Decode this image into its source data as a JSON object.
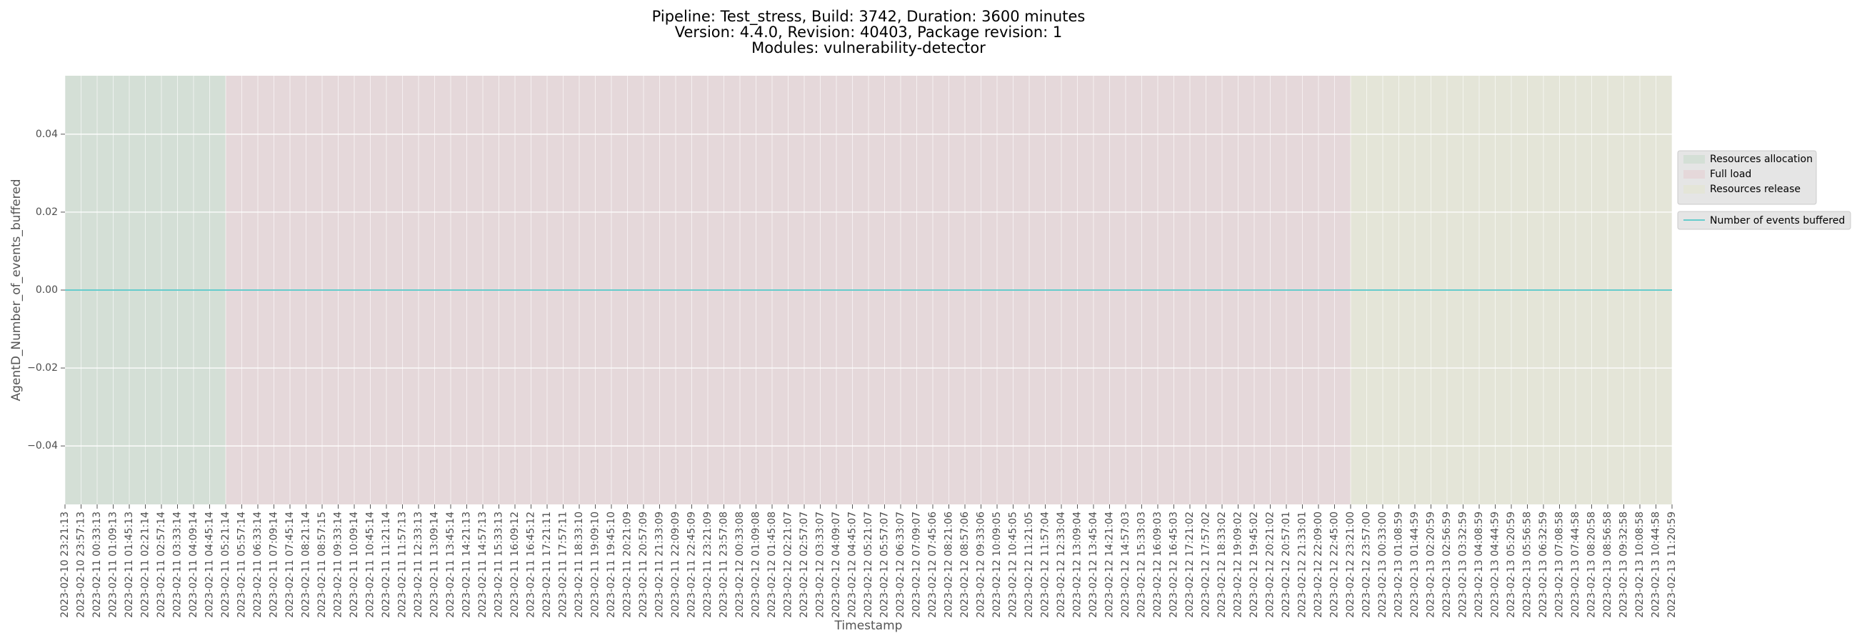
{
  "chart_data": {
    "type": "line",
    "title": [
      "Pipeline: Test_stress, Build: 3742, Duration: 3600 minutes",
      "Version: 4.4.0, Revision: 40403, Package revision: 1",
      "Modules: vulnerability-detector"
    ],
    "x_label": "Timestamp",
    "y_label": "AgentD_Number_of_events_buffered",
    "x": [
      "2023-02-10 23:21:13",
      "2023-02-10 23:57:13",
      "2023-02-11 00:33:13",
      "2023-02-11 01:09:13",
      "2023-02-11 01:45:13",
      "2023-02-11 02:21:14",
      "2023-02-11 02:57:14",
      "2023-02-11 03:33:14",
      "2023-02-11 04:09:14",
      "2023-02-11 04:45:14",
      "2023-02-11 05:21:14",
      "2023-02-11 05:57:14",
      "2023-02-11 06:33:14",
      "2023-02-11 07:09:14",
      "2023-02-11 07:45:14",
      "2023-02-11 08:21:14",
      "2023-02-11 08:57:15",
      "2023-02-11 09:33:14",
      "2023-02-11 10:09:14",
      "2023-02-11 10:45:14",
      "2023-02-11 11:21:14",
      "2023-02-11 11:57:13",
      "2023-02-11 12:33:13",
      "2023-02-11 13:09:14",
      "2023-02-11 13:45:14",
      "2023-02-11 14:21:13",
      "2023-02-11 14:57:13",
      "2023-02-11 15:33:13",
      "2023-02-11 16:09:12",
      "2023-02-11 16:45:12",
      "2023-02-11 17:21:11",
      "2023-02-11 17:57:11",
      "2023-02-11 18:33:10",
      "2023-02-11 19:09:10",
      "2023-02-11 19:45:10",
      "2023-02-11 20:21:09",
      "2023-02-11 20:57:09",
      "2023-02-11 21:33:09",
      "2023-02-11 22:09:09",
      "2023-02-11 22:45:09",
      "2023-02-11 23:21:09",
      "2023-02-11 23:57:08",
      "2023-02-12 00:33:08",
      "2023-02-12 01:09:08",
      "2023-02-12 01:45:08",
      "2023-02-12 02:21:07",
      "2023-02-12 02:57:07",
      "2023-02-12 03:33:07",
      "2023-02-12 04:09:07",
      "2023-02-12 04:45:07",
      "2023-02-12 05:21:07",
      "2023-02-12 05:57:07",
      "2023-02-12 06:33:07",
      "2023-02-12 07:09:07",
      "2023-02-12 07:45:06",
      "2023-02-12 08:21:06",
      "2023-02-12 08:57:06",
      "2023-02-12 09:33:06",
      "2023-02-12 10:09:05",
      "2023-02-12 10:45:05",
      "2023-02-12 11:21:05",
      "2023-02-12 11:57:04",
      "2023-02-12 12:33:04",
      "2023-02-12 13:09:04",
      "2023-02-12 13:45:04",
      "2023-02-12 14:21:04",
      "2023-02-12 14:57:03",
      "2023-02-12 15:33:03",
      "2023-02-12 16:09:03",
      "2023-02-12 16:45:03",
      "2023-02-12 17:21:02",
      "2023-02-12 17:57:02",
      "2023-02-12 18:33:02",
      "2023-02-12 19:09:02",
      "2023-02-12 19:45:02",
      "2023-02-12 20:21:02",
      "2023-02-12 20:57:01",
      "2023-02-12 21:33:01",
      "2023-02-12 22:09:00",
      "2023-02-12 22:45:00",
      "2023-02-12 23:21:00",
      "2023-02-12 23:57:00",
      "2023-02-13 00:33:00",
      "2023-02-13 01:08:59",
      "2023-02-13 01:44:59",
      "2023-02-13 02:20:59",
      "2023-02-13 02:56:59",
      "2023-02-13 03:32:59",
      "2023-02-13 04:08:59",
      "2023-02-13 04:44:59",
      "2023-02-13 05:20:59",
      "2023-02-13 05:56:58",
      "2023-02-13 06:32:59",
      "2023-02-13 07:08:58",
      "2023-02-13 07:44:58",
      "2023-02-13 08:20:58",
      "2023-02-13 08:56:58",
      "2023-02-13 09:32:58",
      "2023-02-13 10:08:58",
      "2023-02-13 10:44:58",
      "2023-02-13 11:20:59"
    ],
    "series": [
      {
        "name": "Number of events buffered",
        "color": "#66cccc",
        "values": [
          0,
          0,
          0,
          0,
          0,
          0,
          0,
          0,
          0,
          0,
          0,
          0,
          0,
          0,
          0,
          0,
          0,
          0,
          0,
          0,
          0,
          0,
          0,
          0,
          0,
          0,
          0,
          0,
          0,
          0,
          0,
          0,
          0,
          0,
          0,
          0,
          0,
          0,
          0,
          0,
          0,
          0,
          0,
          0,
          0,
          0,
          0,
          0,
          0,
          0,
          0,
          0,
          0,
          0,
          0,
          0,
          0,
          0,
          0,
          0,
          0,
          0,
          0,
          0,
          0,
          0,
          0,
          0,
          0,
          0,
          0,
          0,
          0,
          0,
          0,
          0,
          0,
          0,
          0,
          0,
          0,
          0,
          0,
          0,
          0,
          0,
          0,
          0,
          0,
          0,
          0,
          0,
          0,
          0,
          0,
          0,
          0,
          0,
          0,
          0,
          0
        ]
      }
    ],
    "stages": [
      {
        "name": "Resources allocation",
        "start": "2023-02-10 23:21:13",
        "end": "2023-02-11 05:21:14",
        "color": "#d4dfd6"
      },
      {
        "name": "Full load",
        "start": "2023-02-11 05:21:14",
        "end": "2023-02-12 23:21:00",
        "color": "#e5d8da"
      },
      {
        "name": "Resources release",
        "start": "2023-02-12 23:21:00",
        "end": "2023-02-13 11:20:59",
        "color": "#e4e5d8"
      }
    ],
    "ylim": [
      -0.055,
      0.055
    ],
    "yticks": [
      {
        "value": -0.04,
        "label": "−0.04"
      },
      {
        "value": -0.02,
        "label": "−0.02"
      },
      {
        "value": 0,
        "label": "0.00"
      },
      {
        "value": 0.02,
        "label": "0.02"
      },
      {
        "value": 0.04,
        "label": "0.04"
      }
    ],
    "grid": true,
    "legend": "outside right"
  }
}
